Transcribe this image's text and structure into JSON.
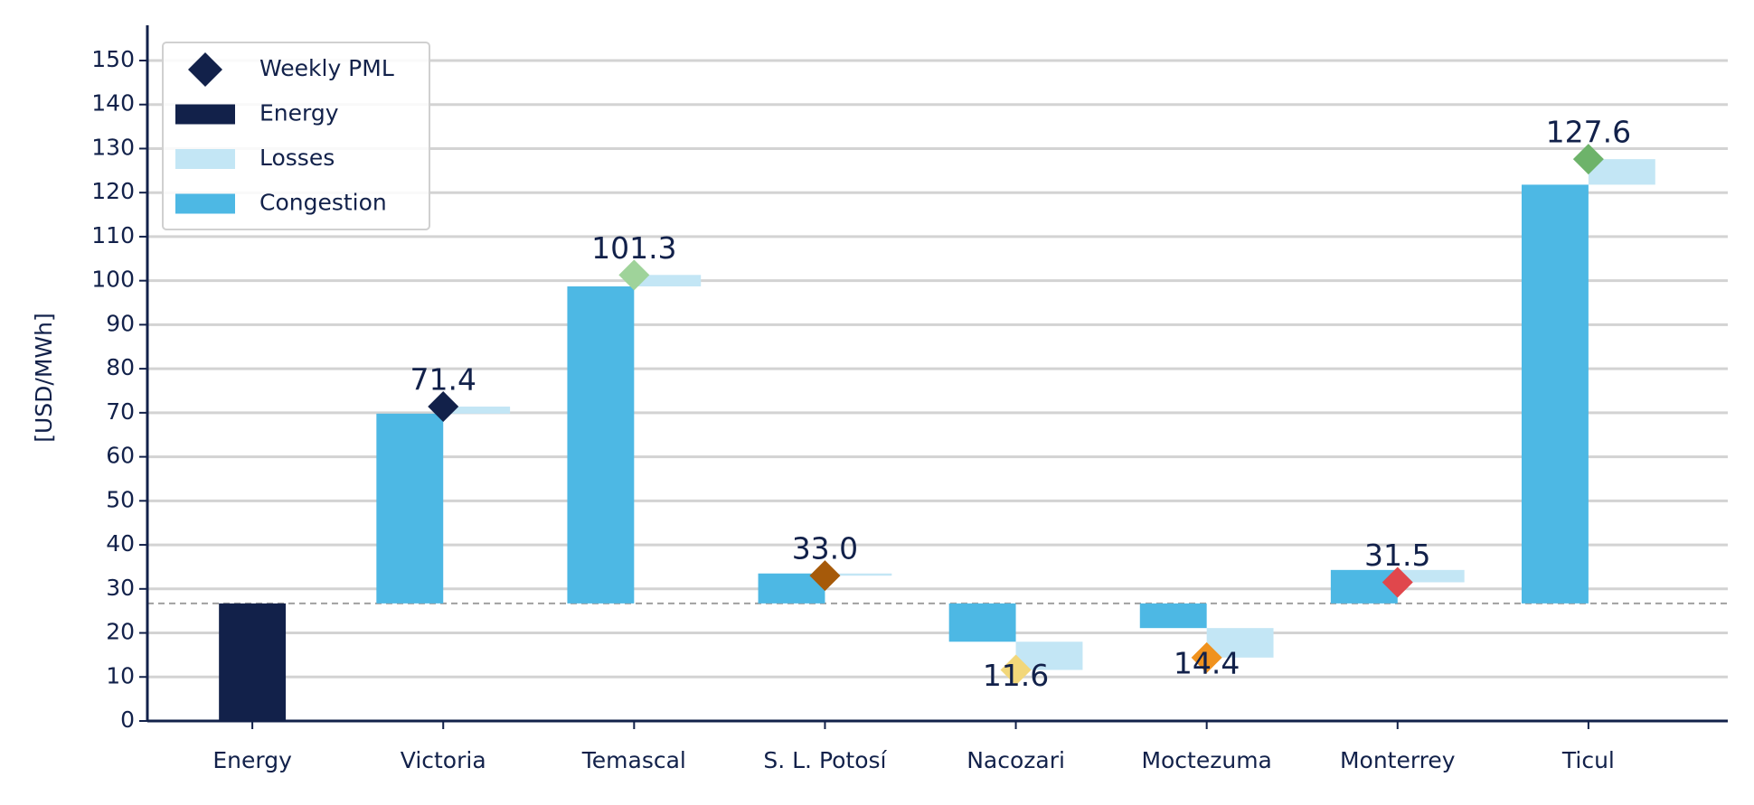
{
  "chart_data": {
    "type": "waterfall",
    "y_label": "[USD/MWh]",
    "categories": [
      "Energy",
      "Victoria",
      "Temascal",
      "S. L. Potosí",
      "Nacozari",
      "Moctezuma",
      "Monterrey",
      "Ticul"
    ],
    "series": [
      {
        "name": "Weekly PML",
        "color": "#12214a",
        "values": [
          null,
          71.4,
          101.3,
          33.0,
          11.6,
          14.4,
          31.5,
          127.6
        ],
        "value_labels": [
          null,
          "71.4",
          "101.3",
          "33.0",
          "11.6",
          "14.4",
          "31.5",
          "127.6"
        ],
        "colors": [
          null,
          "#12214a",
          "#9fd39a",
          "#a65a0a",
          "#f2d77a",
          "#f0921e",
          "#e0474c",
          "#6db36a"
        ]
      },
      {
        "name": "Energy",
        "color": "#12214a",
        "values": [
          26.7,
          null,
          null,
          null,
          null,
          null,
          null,
          null
        ]
      },
      {
        "name": "Losses",
        "color": "#c3e6f5",
        "values": [
          null,
          1.6,
          2.6,
          -0.5,
          -6.4,
          -6.7,
          -2.8,
          5.8
        ]
      },
      {
        "name": "Congestion",
        "color": "#4db8e4",
        "values": [
          null,
          43.1,
          72.0,
          6.8,
          -8.7,
          -5.6,
          7.6,
          95.1
        ]
      }
    ],
    "ylim": [
      0,
      158
    ],
    "yticks": [
      0,
      10,
      20,
      30,
      40,
      50,
      60,
      70,
      80,
      90,
      100,
      110,
      120,
      130,
      140,
      150
    ],
    "grid": true,
    "legend": "upper left"
  }
}
